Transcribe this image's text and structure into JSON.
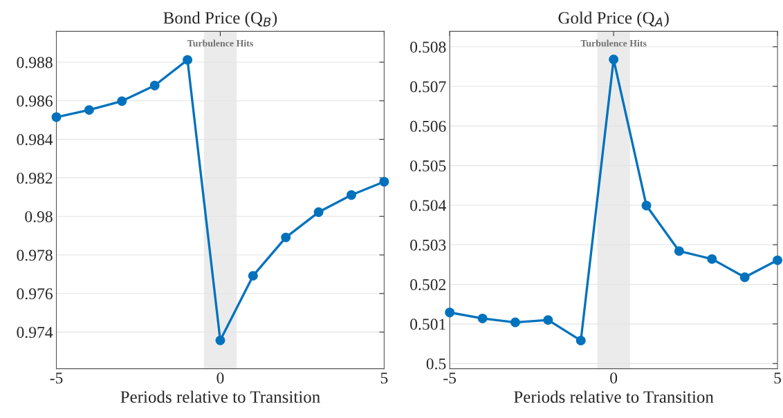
{
  "chart_data": [
    {
      "type": "line",
      "title": "Bond Price (Q$_{B}$)",
      "xlabel": "Periods relative to Transition",
      "x": [
        -5,
        -4,
        -3,
        -2,
        -1,
        0,
        1,
        2,
        3,
        4,
        5
      ],
      "series": [
        {
          "color": "#0072bd",
          "values": [
            0.98515,
            0.98552,
            0.98598,
            0.98679,
            0.98812,
            0.97357,
            0.97692,
            0.97891,
            0.98022,
            0.98111,
            0.9818
          ]
        }
      ],
      "xlim": [
        -5,
        5
      ],
      "xticks": [
        -5,
        0,
        5
      ],
      "ylim": [
        0.9721,
        0.9896
      ],
      "yticks": [
        0.974,
        0.976,
        0.978,
        {
          "value": 0.98,
          "label": "0.98"
        },
        0.982,
        0.984,
        0.986,
        0.988
      ],
      "bands": [
        {
          "axis": "x",
          "from": -0.5,
          "to": 0.5,
          "label": "Turbulence Hits",
          "color": "#ebebeb"
        }
      ],
      "grid": "y",
      "marker": "circle",
      "line_style": "solid"
    },
    {
      "type": "line",
      "title": "Gold Price (Q$_{A}$)",
      "xlabel": "Periods relative to Transition",
      "x": [
        -5,
        -4,
        -3,
        -2,
        -1,
        0,
        1,
        2,
        3,
        4,
        5
      ],
      "series": [
        {
          "color": "#0072bd",
          "values": [
            0.50129,
            0.50114,
            0.50104,
            0.5011,
            0.50058,
            0.50768,
            0.50399,
            0.50284,
            0.50264,
            0.50218,
            0.50261
          ]
        }
      ],
      "xlim": [
        -5,
        5
      ],
      "xticks": [
        -5,
        0,
        5
      ],
      "ylim": [
        0.49987,
        0.50839
      ],
      "yticks": [
        {
          "value": 0.5,
          "label": "0.5"
        },
        0.501,
        0.502,
        0.503,
        0.504,
        0.505,
        0.506,
        0.507,
        0.508
      ],
      "bands": [
        {
          "axis": "x",
          "from": -0.5,
          "to": 0.5,
          "label": "Turbulence Hits",
          "color": "#ebebeb"
        }
      ],
      "grid": "y",
      "marker": "circle",
      "line_style": "solid"
    }
  ]
}
